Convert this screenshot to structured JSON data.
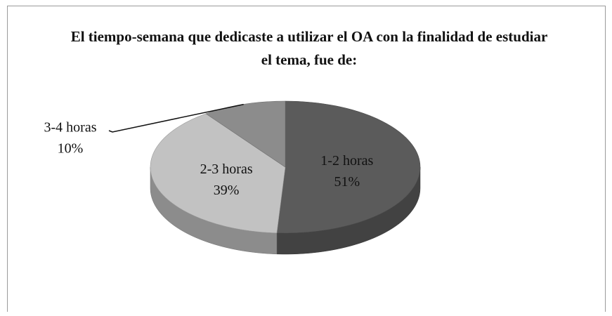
{
  "chart_data": {
    "type": "pie",
    "three_d": true,
    "title": "El tiempo-semana que dedicaste a utilizar el OA con la finalidad de estudiar el tema, fue de:",
    "categories": [
      "1-2 horas",
      "2-3 horas",
      "3-4 horas"
    ],
    "values": [
      51,
      39,
      10
    ],
    "value_labels": [
      "51%",
      "39%",
      "10%"
    ],
    "colors": [
      "#5b5b5b",
      "#c2c2c2",
      "#8c8c8c"
    ]
  }
}
